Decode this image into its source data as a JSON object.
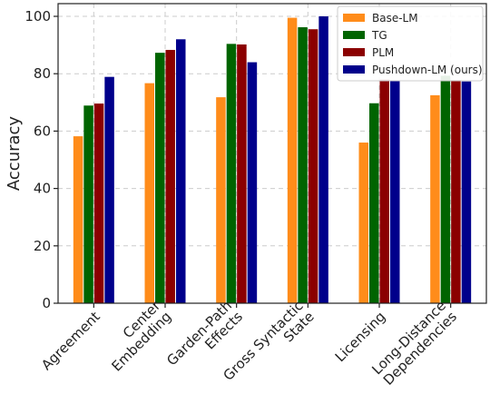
{
  "chart_data": {
    "type": "bar",
    "title": "",
    "xlabel": "",
    "ylabel": "Accuracy",
    "ylim": [
      0,
      100
    ],
    "yticks": [
      0,
      20,
      40,
      60,
      80,
      100
    ],
    "grid": true,
    "legend_position": "top-right",
    "categories": [
      [
        "Agreement"
      ],
      [
        "Center",
        "Embedding"
      ],
      [
        "Garden-Path",
        "Effects"
      ],
      [
        "Gross Syntactic",
        "State"
      ],
      [
        "Licensing"
      ],
      [
        "Long-Distance",
        "Dependencies"
      ]
    ],
    "series": [
      {
        "name": "Base-LM",
        "color": "#ff8c1a",
        "values": [
          58.2,
          76.7,
          71.8,
          99.5,
          56.0,
          72.5
        ]
      },
      {
        "name": "TG",
        "color": "#006400",
        "values": [
          68.9,
          87.3,
          90.4,
          96.2,
          69.7,
          79.3
        ]
      },
      {
        "name": "PLM",
        "color": "#8b0000",
        "values": [
          69.6,
          88.3,
          90.2,
          95.5,
          78.0,
          77.8
        ]
      },
      {
        "name": "Pushdown-LM (ours)",
        "color": "#00008b",
        "values": [
          78.9,
          92.0,
          84.0,
          100.0,
          77.6,
          77.3
        ]
      }
    ]
  }
}
